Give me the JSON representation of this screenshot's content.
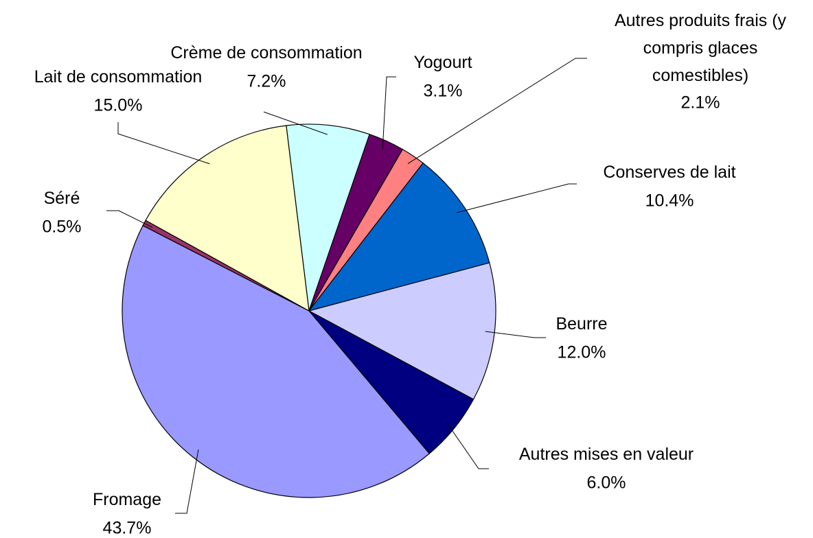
{
  "chart_data": {
    "type": "pie",
    "categories": [
      "Crème de consommation",
      "Yogourt",
      "Autres produits frais (y compris glaces comestibles)",
      "Conserves de lait",
      "Beurre",
      "Autres mises en valeur",
      "Fromage",
      "Séré",
      "Lait de consommation"
    ],
    "values": [
      7.2,
      3.1,
      2.1,
      10.4,
      12.0,
      6.0,
      43.7,
      0.5,
      15.0
    ],
    "value_labels": [
      "7.2%",
      "3.1%",
      "2.1%",
      "10.4%",
      "12.0%",
      "6.0%",
      "43.7%",
      "0.5%",
      "15.0%"
    ],
    "colors": [
      "#ccffff",
      "#660066",
      "#ff8080",
      "#0066cc",
      "#ccccff",
      "#000080",
      "#9999ff",
      "#993366",
      "#ffffcc"
    ]
  }
}
